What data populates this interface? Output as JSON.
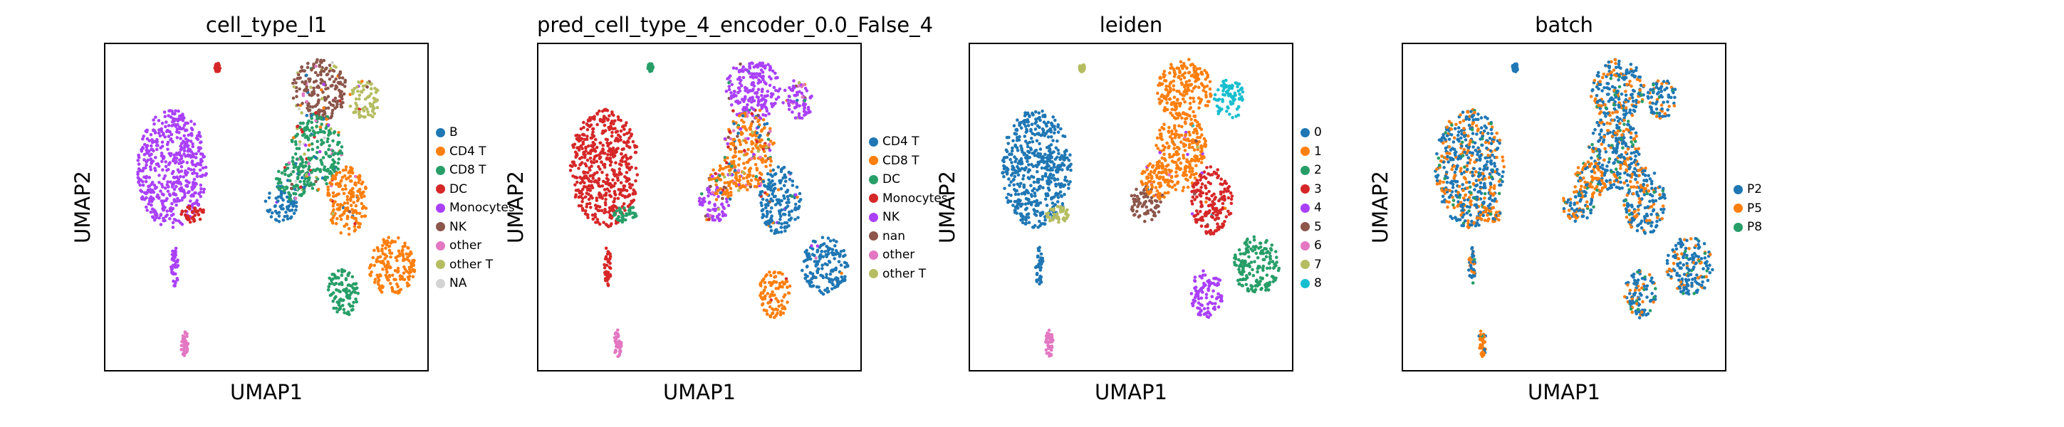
{
  "chart_data": [
    {
      "type": "scatter",
      "title": "cell_type_l1",
      "xlabel": "UMAP1",
      "ylabel": "UMAP2",
      "grid": false,
      "legend": "right",
      "series": [
        {
          "name": "B",
          "color": "#1f77b4"
        },
        {
          "name": "CD4 T",
          "color": "#ff7f0e"
        },
        {
          "name": "CD8 T",
          "color": "#279e68"
        },
        {
          "name": "DC",
          "color": "#d62728"
        },
        {
          "name": "Monocytes",
          "color": "#aa40fc"
        },
        {
          "name": "NK",
          "color": "#8c564b"
        },
        {
          "name": "other",
          "color": "#e377c2"
        },
        {
          "name": "other T",
          "color": "#b5bd61"
        },
        {
          "name": "NA",
          "color": "#d3d3d3"
        }
      ]
    },
    {
      "type": "scatter",
      "title": "pred_cell_type_4_encoder_0.0_False_4",
      "xlabel": "UMAP1",
      "ylabel": "UMAP2",
      "grid": false,
      "legend": "right",
      "series": [
        {
          "name": "CD4 T",
          "color": "#1f77b4"
        },
        {
          "name": "CD8 T",
          "color": "#ff7f0e"
        },
        {
          "name": "DC",
          "color": "#279e68"
        },
        {
          "name": "Monocytes",
          "color": "#d62728"
        },
        {
          "name": "NK",
          "color": "#aa40fc"
        },
        {
          "name": "nan",
          "color": "#8c564b"
        },
        {
          "name": "other",
          "color": "#e377c2"
        },
        {
          "name": "other T",
          "color": "#b5bd61"
        }
      ]
    },
    {
      "type": "scatter",
      "title": "leiden",
      "xlabel": "UMAP1",
      "ylabel": "UMAP2",
      "grid": false,
      "legend": "right",
      "series": [
        {
          "name": "0",
          "color": "#1f77b4"
        },
        {
          "name": "1",
          "color": "#ff7f0e"
        },
        {
          "name": "2",
          "color": "#279e68"
        },
        {
          "name": "3",
          "color": "#d62728"
        },
        {
          "name": "4",
          "color": "#aa40fc"
        },
        {
          "name": "5",
          "color": "#8c564b"
        },
        {
          "name": "6",
          "color": "#e377c2"
        },
        {
          "name": "7",
          "color": "#b5bd61"
        },
        {
          "name": "8",
          "color": "#17becf"
        }
      ]
    },
    {
      "type": "scatter",
      "title": "batch",
      "xlabel": "UMAP1",
      "ylabel": "UMAP2",
      "grid": false,
      "legend": "right",
      "series": [
        {
          "name": "P2",
          "color": "#1f77b4"
        },
        {
          "name": "P5",
          "color": "#ff7f0e"
        },
        {
          "name": "P8",
          "color": "#279e68"
        }
      ]
    }
  ]
}
